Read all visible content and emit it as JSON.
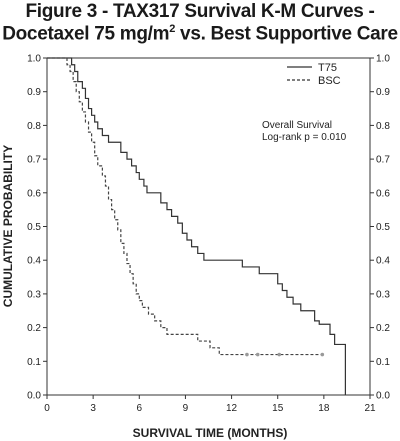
{
  "chart_data": {
    "type": "line",
    "step": true,
    "title": "Figure 3 - TAX317 Survival K-M Curves -",
    "subtitle_parts": [
      "Docetaxel 75 mg/m",
      "2",
      " vs. Best Supportive Care"
    ],
    "xlabel": "SURVIVAL TIME (MONTHS)",
    "ylabel": "CUMULATIVE PROBABILITY",
    "xlim": [
      0,
      21
    ],
    "ylim": [
      0,
      1.0
    ],
    "xticks": [
      "0",
      "3",
      "6",
      "9",
      "12",
      "15",
      "18",
      "21"
    ],
    "yticks": [
      "0.0",
      "0.1",
      "0.2",
      "0.3",
      "0.4",
      "0.5",
      "0.6",
      "0.7",
      "0.8",
      "0.9",
      "1.0"
    ],
    "yticks_right": true,
    "grid": false,
    "legend_position": "top-right",
    "annotations": [
      "Overall Survival",
      "Log-rank p = 0.010"
    ],
    "series": [
      {
        "name": "T75",
        "style": "solid",
        "color": "#333333",
        "points": [
          [
            0,
            1.0
          ],
          [
            1.5,
            1.0
          ],
          [
            1.6,
            0.98
          ],
          [
            1.8,
            0.96
          ],
          [
            2.0,
            0.93
          ],
          [
            2.3,
            0.91
          ],
          [
            2.5,
            0.88
          ],
          [
            2.7,
            0.85
          ],
          [
            2.9,
            0.83
          ],
          [
            3.1,
            0.81
          ],
          [
            3.3,
            0.79
          ],
          [
            3.6,
            0.77
          ],
          [
            4.0,
            0.75
          ],
          [
            4.6,
            0.75
          ],
          [
            4.8,
            0.72
          ],
          [
            5.2,
            0.7
          ],
          [
            5.5,
            0.68
          ],
          [
            5.8,
            0.66
          ],
          [
            6.0,
            0.64
          ],
          [
            6.3,
            0.62
          ],
          [
            6.5,
            0.6
          ],
          [
            7.2,
            0.6
          ],
          [
            7.4,
            0.57
          ],
          [
            7.8,
            0.55
          ],
          [
            8.1,
            0.53
          ],
          [
            8.5,
            0.51
          ],
          [
            8.8,
            0.48
          ],
          [
            9.1,
            0.46
          ],
          [
            9.4,
            0.44
          ],
          [
            9.8,
            0.42
          ],
          [
            10.2,
            0.4
          ],
          [
            12.5,
            0.4
          ],
          [
            12.7,
            0.38
          ],
          [
            13.6,
            0.38
          ],
          [
            13.8,
            0.36
          ],
          [
            14.8,
            0.36
          ],
          [
            15.0,
            0.33
          ],
          [
            15.3,
            0.31
          ],
          [
            15.6,
            0.29
          ],
          [
            16.0,
            0.27
          ],
          [
            16.5,
            0.25
          ],
          [
            17.2,
            0.25
          ],
          [
            17.4,
            0.22
          ],
          [
            17.7,
            0.21
          ],
          [
            18.2,
            0.21
          ],
          [
            18.4,
            0.18
          ],
          [
            18.7,
            0.15
          ],
          [
            19.4,
            0.15
          ],
          [
            19.4,
            0.0
          ]
        ],
        "censored": []
      },
      {
        "name": "BSC",
        "style": "dashed",
        "color": "#444444",
        "points": [
          [
            0,
            1.0
          ],
          [
            1.2,
            1.0
          ],
          [
            1.3,
            0.98
          ],
          [
            1.5,
            0.96
          ],
          [
            1.7,
            0.93
          ],
          [
            1.9,
            0.9
          ],
          [
            2.1,
            0.87
          ],
          [
            2.3,
            0.84
          ],
          [
            2.5,
            0.81
          ],
          [
            2.7,
            0.78
          ],
          [
            2.9,
            0.75
          ],
          [
            3.1,
            0.71
          ],
          [
            3.3,
            0.68
          ],
          [
            3.6,
            0.65
          ],
          [
            3.8,
            0.62
          ],
          [
            4.0,
            0.58
          ],
          [
            4.2,
            0.55
          ],
          [
            4.4,
            0.52
          ],
          [
            4.6,
            0.49
          ],
          [
            4.8,
            0.45
          ],
          [
            5.0,
            0.42
          ],
          [
            5.2,
            0.39
          ],
          [
            5.4,
            0.36
          ],
          [
            5.6,
            0.33
          ],
          [
            5.8,
            0.3
          ],
          [
            6.0,
            0.28
          ],
          [
            6.2,
            0.26
          ],
          [
            6.6,
            0.24
          ],
          [
            7.0,
            0.22
          ],
          [
            7.4,
            0.2
          ],
          [
            7.8,
            0.18
          ],
          [
            9.6,
            0.18
          ],
          [
            9.8,
            0.16
          ],
          [
            10.4,
            0.16
          ],
          [
            10.6,
            0.14
          ],
          [
            11.0,
            0.14
          ],
          [
            11.2,
            0.12
          ],
          [
            18.0,
            0.12
          ]
        ],
        "censored": [
          [
            13.0,
            0.12
          ],
          [
            13.7,
            0.12
          ],
          [
            15.1,
            0.12
          ],
          [
            17.9,
            0.12
          ]
        ]
      }
    ]
  }
}
